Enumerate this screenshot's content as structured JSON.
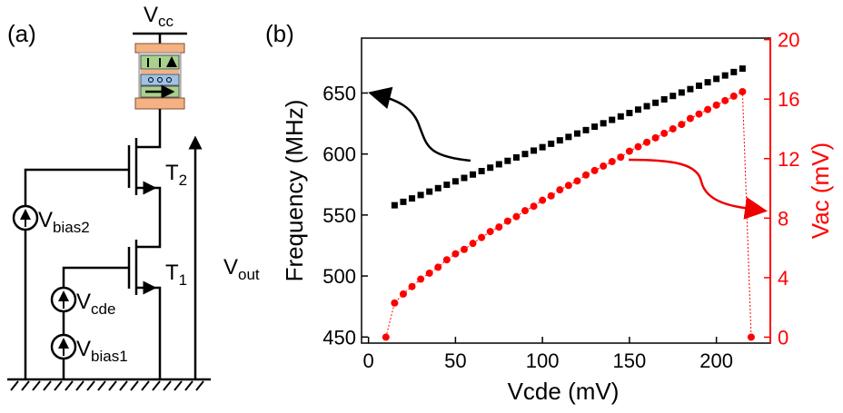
{
  "diagram": {
    "panel_label": "(a)",
    "labels": [
      {
        "base": "V",
        "sub": "cc"
      },
      {
        "base": "T",
        "sub": "2"
      },
      {
        "base": "T",
        "sub": "1"
      },
      {
        "base": "V",
        "sub": "bias2"
      },
      {
        "base": "V",
        "sub": "cde"
      },
      {
        "base": "V",
        "sub": "bias1"
      },
      {
        "base": "V",
        "sub": "out"
      }
    ]
  },
  "chart_data": {
    "type": "scatter",
    "panel_label": "(b)",
    "x_label": "Vcde (mV)",
    "y_label": "Frequency (MHz)",
    "y2_label": "Vac (mV)",
    "xlim": [
      -4,
      231
    ],
    "xticks": [
      0,
      50,
      100,
      150,
      200
    ],
    "ylim": [
      445,
      695
    ],
    "yticks": [
      450,
      500,
      550,
      600,
      650
    ],
    "y2lim": [
      -0.4,
      20.1
    ],
    "y2ticks": [
      0,
      4,
      8,
      12,
      16,
      20
    ],
    "y2_color": "#ff0000",
    "series": [
      {
        "name": "Frequency",
        "color": "#000000",
        "marker": "square",
        "x": [
          15,
          20,
          25,
          30,
          35,
          40,
          45,
          50,
          55,
          60,
          65,
          70,
          75,
          80,
          85,
          90,
          95,
          100,
          105,
          110,
          115,
          120,
          125,
          130,
          135,
          140,
          145,
          150,
          155,
          160,
          165,
          170,
          175,
          180,
          185,
          190,
          195,
          200,
          205,
          210,
          215
        ],
        "values": [
          558,
          560.8,
          563.6,
          566.4,
          569.2,
          572,
          574.8,
          577.6,
          580.4,
          583.2,
          586,
          588.8,
          591.6,
          594.4,
          597.2,
          600,
          602.8,
          605.6,
          608.4,
          611.2,
          614,
          616.8,
          619.6,
          622.4,
          625.2,
          628,
          630.8,
          633.6,
          636.4,
          639.2,
          642,
          644.8,
          647.6,
          650.4,
          653.2,
          656,
          658.8,
          661.6,
          664.4,
          667.2,
          670
        ]
      },
      {
        "name": "Vac",
        "color": "#ff0000",
        "marker": "circle",
        "line_style": "dotted",
        "axis": "y2",
        "x": [
          10,
          15,
          20,
          25,
          30,
          35,
          40,
          45,
          50,
          55,
          60,
          65,
          70,
          75,
          80,
          85,
          90,
          95,
          100,
          105,
          110,
          115,
          120,
          125,
          130,
          135,
          140,
          145,
          150,
          155,
          160,
          165,
          170,
          175,
          180,
          185,
          190,
          195,
          200,
          205,
          210,
          215,
          220
        ],
        "values": [
          0,
          2.3,
          2.9,
          3.4,
          3.9,
          4.3,
          4.7,
          5.2,
          5.6,
          5.9,
          6.3,
          6.7,
          7.1,
          7.4,
          7.8,
          8.1,
          8.5,
          8.8,
          9.2,
          9.5,
          9.9,
          10.2,
          10.5,
          10.9,
          11.2,
          11.5,
          11.8,
          12.1,
          12.5,
          12.8,
          13.1,
          13.4,
          13.7,
          14.0,
          14.3,
          14.7,
          15.0,
          15.3,
          15.6,
          15.9,
          16.2,
          16.5,
          0
        ]
      }
    ]
  }
}
